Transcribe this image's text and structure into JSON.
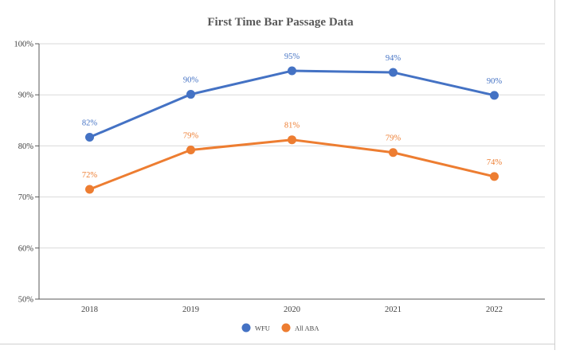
{
  "chart_data": {
    "type": "line",
    "title": "First Time Bar Passage Data",
    "categories": [
      "2018",
      "2019",
      "2020",
      "2021",
      "2022"
    ],
    "ylim": [
      50,
      100
    ],
    "y_ticks": [
      "50%",
      "60%",
      "70%",
      "80%",
      "90%",
      "100%"
    ],
    "y_tick_values": [
      50,
      60,
      70,
      80,
      90,
      100
    ],
    "grid": true,
    "legend_position": "bottom",
    "series": [
      {
        "name": "WFU",
        "color": "#4472c4",
        "values": [
          81.7,
          90.1,
          94.7,
          94.4,
          89.9
        ],
        "labels": [
          "82%",
          "90%",
          "95%",
          "94%",
          "90%"
        ]
      },
      {
        "name": "All ABA",
        "color": "#ed7d31",
        "values": [
          71.5,
          79.2,
          81.2,
          78.7,
          74.0
        ],
        "labels": [
          "72%",
          "79%",
          "81%",
          "79%",
          "74%"
        ]
      }
    ]
  }
}
